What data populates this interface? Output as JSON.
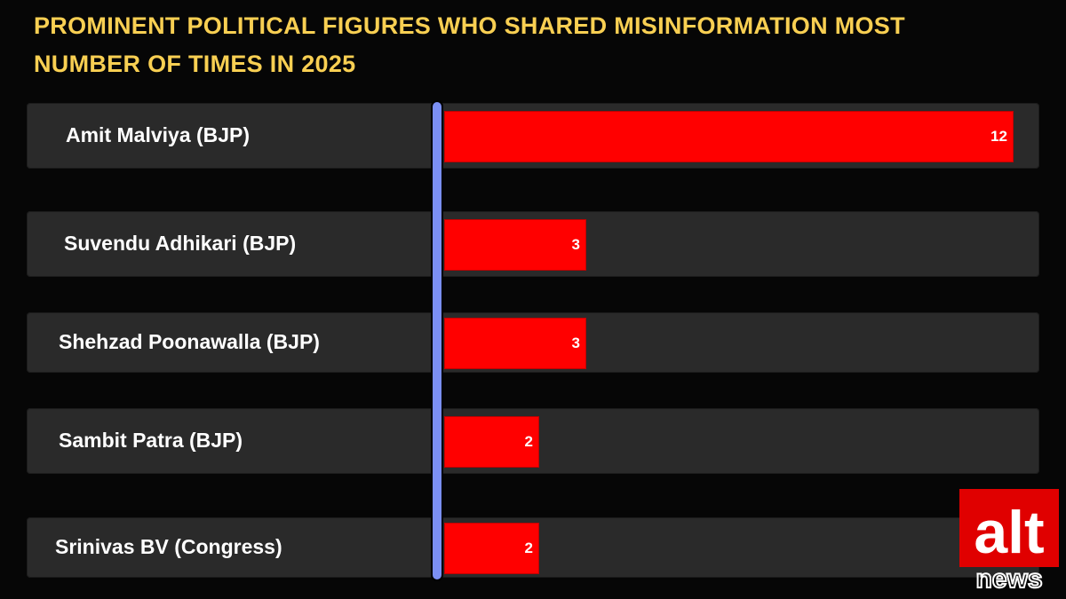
{
  "chart_data": {
    "type": "bar",
    "orientation": "horizontal",
    "title": "PROMINENT POLITICAL FIGURES WHO SHARED MISINFORMATION MOST NUMBER OF TIMES IN 2025",
    "categories": [
      "Amit Malviya (BJP)",
      "Suvendu Adhikari (BJP)",
      "Shehzad Poonawalla (BJP)",
      "Sambit Patra (BJP)",
      "Srinivas BV (Congress)"
    ],
    "values": [
      12,
      3,
      3,
      2,
      2
    ],
    "data_labels": [
      "12",
      "3",
      "3",
      "2",
      "2"
    ],
    "xlim": [
      0,
      12
    ],
    "grid": false,
    "legend": "none",
    "colors": {
      "bar": "#ff0000",
      "title": "#f8cf52",
      "row_background": "#2a2a2a",
      "axis": "#7b8ff4",
      "background": "#060606"
    }
  },
  "logo": {
    "icon": "alt-news-logo",
    "text_top": "alt",
    "text_bottom": "news"
  }
}
